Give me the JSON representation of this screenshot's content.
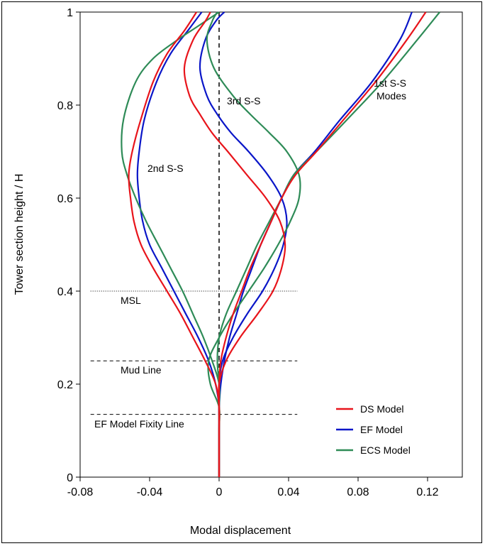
{
  "chart_data": {
    "type": "line",
    "xlabel": "Modal displacement",
    "ylabel": "Tower section height / H",
    "xlim": [
      -0.08,
      0.14
    ],
    "ylim": [
      0,
      1
    ],
    "xticks": [
      -0.08,
      -0.04,
      0,
      0.04,
      0.08,
      0.12
    ],
    "yticks": [
      0,
      0.2,
      0.4,
      0.6,
      0.8,
      1
    ],
    "xtick_labels": [
      "-0.08",
      "-0.04",
      "0",
      "0.04",
      "0.08",
      "0.12"
    ],
    "ytick_labels": [
      "0",
      "0.2",
      "0.4",
      "0.6",
      "0.8",
      "1"
    ],
    "grid": false,
    "legend_position": "bottom-right",
    "colors": {
      "DS Model": "#e8141b",
      "EF Model": "#0a16c8",
      "ECS Model": "#2e8b57"
    },
    "reference_lines": [
      {
        "label": "MSL",
        "y": 0.4,
        "style": "dotted"
      },
      {
        "label": "Mud Line",
        "y": 0.25,
        "style": "dashed"
      },
      {
        "label": "EF Model Fixity Line",
        "y": 0.135,
        "style": "dashed"
      }
    ],
    "annotations": [
      "1st S-S\nModes",
      "2nd S-S",
      "3rd S-S"
    ],
    "series": [
      {
        "name": "DS Model",
        "mode": "1st S-S",
        "x": [
          0,
          0,
          0,
          0,
          0.001,
          0.004,
          0.008,
          0.013,
          0.018,
          0.024,
          0.03,
          0.036,
          0.044,
          0.056,
          0.072,
          0.09,
          0.108,
          0.119
        ],
        "y": [
          0,
          0.1,
          0.15,
          0.2,
          0.25,
          0.3,
          0.35,
          0.4,
          0.45,
          0.5,
          0.55,
          0.6,
          0.65,
          0.7,
          0.77,
          0.85,
          0.94,
          1.0
        ]
      },
      {
        "name": "EF Model",
        "mode": "1st S-S",
        "x": [
          0,
          0,
          0,
          0,
          0.001,
          0.003,
          0.006,
          0.01,
          0.014,
          0.019,
          0.024,
          0.03,
          0.036,
          0.043,
          0.055,
          0.07,
          0.088,
          0.104,
          0.111
        ],
        "y": [
          0,
          0.1,
          0.13,
          0.15,
          0.2,
          0.25,
          0.3,
          0.35,
          0.4,
          0.45,
          0.5,
          0.55,
          0.6,
          0.65,
          0.7,
          0.77,
          0.85,
          0.94,
          1.0
        ]
      },
      {
        "name": "ECS Model",
        "mode": "1st S-S",
        "x": [
          0,
          0,
          0,
          0,
          -0.001,
          0.0,
          0.004,
          0.01,
          0.016,
          0.022,
          0.029,
          0.036,
          0.043,
          0.056,
          0.074,
          0.094,
          0.114,
          0.127
        ],
        "y": [
          0,
          0.1,
          0.15,
          0.2,
          0.25,
          0.3,
          0.35,
          0.4,
          0.45,
          0.5,
          0.55,
          0.6,
          0.65,
          0.7,
          0.77,
          0.85,
          0.94,
          1.0
        ]
      },
      {
        "name": "DS Model",
        "mode": "2nd S-S",
        "x": [
          0,
          0,
          0,
          -0.002,
          -0.008,
          -0.015,
          -0.022,
          -0.03,
          -0.038,
          -0.045,
          -0.049,
          -0.051,
          -0.052,
          -0.05,
          -0.045,
          -0.038,
          -0.03,
          -0.02,
          -0.013
        ],
        "y": [
          0,
          0.1,
          0.15,
          0.2,
          0.25,
          0.3,
          0.35,
          0.4,
          0.45,
          0.5,
          0.55,
          0.6,
          0.65,
          0.7,
          0.77,
          0.85,
          0.91,
          0.96,
          1.0
        ]
      },
      {
        "name": "EF Model",
        "mode": "2nd S-S",
        "x": [
          0,
          0,
          0,
          -0.002,
          -0.006,
          -0.012,
          -0.019,
          -0.026,
          -0.033,
          -0.04,
          -0.044,
          -0.046,
          -0.047,
          -0.046,
          -0.043,
          -0.036,
          -0.028,
          -0.018,
          -0.01
        ],
        "y": [
          0,
          0.1,
          0.15,
          0.2,
          0.25,
          0.3,
          0.35,
          0.4,
          0.45,
          0.5,
          0.55,
          0.6,
          0.65,
          0.7,
          0.77,
          0.85,
          0.91,
          0.96,
          1.0
        ]
      },
      {
        "name": "ECS Model",
        "mode": "2nd S-S",
        "x": [
          0,
          0,
          0,
          0,
          -0.004,
          -0.009,
          -0.015,
          -0.021,
          -0.028,
          -0.035,
          -0.042,
          -0.048,
          -0.053,
          -0.056,
          -0.055,
          -0.048,
          -0.038,
          -0.024,
          -0.012,
          0.0
        ],
        "y": [
          0,
          0.1,
          0.15,
          0.2,
          0.25,
          0.3,
          0.35,
          0.4,
          0.45,
          0.5,
          0.55,
          0.6,
          0.65,
          0.7,
          0.77,
          0.85,
          0.9,
          0.94,
          0.97,
          1.0
        ]
      },
      {
        "name": "DS Model",
        "mode": "3rd S-S",
        "x": [
          0,
          0,
          0,
          0,
          0.004,
          0.012,
          0.022,
          0.031,
          0.036,
          0.038,
          0.035,
          0.027,
          0.016,
          0.005,
          -0.004,
          -0.011,
          -0.017,
          -0.02,
          -0.015,
          -0.008,
          -0.005
        ],
        "y": [
          0,
          0.1,
          0.15,
          0.2,
          0.25,
          0.3,
          0.35,
          0.4,
          0.45,
          0.5,
          0.55,
          0.6,
          0.65,
          0.7,
          0.74,
          0.78,
          0.82,
          0.88,
          0.94,
          0.98,
          1.0
        ]
      },
      {
        "name": "EF Model",
        "mode": "3rd S-S",
        "x": [
          0,
          0,
          0,
          0,
          0.002,
          0.008,
          0.016,
          0.025,
          0.032,
          0.037,
          0.039,
          0.036,
          0.028,
          0.017,
          0.007,
          -0.001,
          -0.007,
          -0.011,
          -0.008,
          -0.002,
          0.003
        ],
        "y": [
          0,
          0.1,
          0.15,
          0.2,
          0.25,
          0.3,
          0.35,
          0.4,
          0.45,
          0.5,
          0.55,
          0.6,
          0.65,
          0.7,
          0.74,
          0.78,
          0.82,
          0.88,
          0.94,
          0.98,
          1.0
        ]
      },
      {
        "name": "ECS Model",
        "mode": "3rd S-S",
        "x": [
          0,
          0,
          0,
          -0.005,
          -0.006,
          0.0,
          0.008,
          0.017,
          0.026,
          0.034,
          0.041,
          0.046,
          0.046,
          0.039,
          0.029,
          0.018,
          0.008,
          -0.003,
          -0.007,
          -0.004,
          -0.001
        ],
        "y": [
          0,
          0.1,
          0.15,
          0.2,
          0.25,
          0.3,
          0.35,
          0.4,
          0.45,
          0.5,
          0.55,
          0.6,
          0.65,
          0.7,
          0.74,
          0.78,
          0.82,
          0.88,
          0.94,
          0.98,
          1.0
        ]
      }
    ]
  }
}
